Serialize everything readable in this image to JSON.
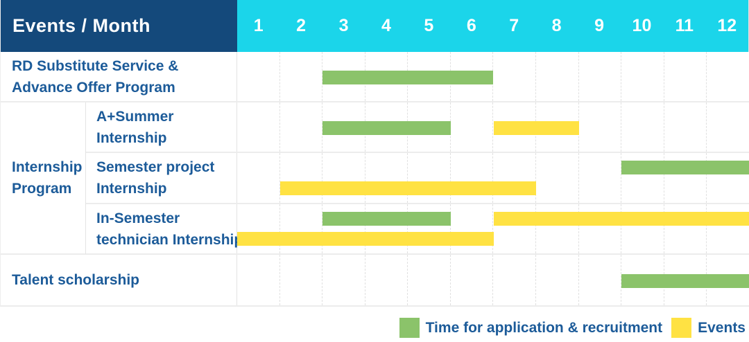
{
  "header": {
    "title": "Events / Month"
  },
  "colors": {
    "header_bg": "#14497B",
    "months_bg": "#1BD5EA",
    "text_blue": "#1C5B99",
    "green": "#8BC36A",
    "yellow": "#FFE243"
  },
  "legend": [
    {
      "color_key": "green",
      "label": "Time for application & recruitment"
    },
    {
      "color_key": "yellow",
      "label": "Events"
    }
  ],
  "chart_data": {
    "type": "bar",
    "subtype": "gantt-timeline",
    "title": "Events / Month",
    "x_categories": [
      "1",
      "2",
      "3",
      "4",
      "5",
      "6",
      "7",
      "8",
      "9",
      "10",
      "11",
      "12"
    ],
    "x_axis_label": "Month",
    "x_range": [
      1,
      12
    ],
    "grid": "vertical-dashed",
    "legend_position": "bottom-right",
    "legend": {
      "green": "Time for application & recruitment",
      "yellow": "Events"
    },
    "sections": [
      {
        "type": "single",
        "label_lines": [
          "RD Substitute Service &",
          "Advance Offer Program"
        ],
        "bands": [
          {
            "pos": "center",
            "bars": [
              {
                "color": "green",
                "start_month": 3,
                "end_month": 6
              }
            ]
          }
        ]
      },
      {
        "type": "group",
        "label_lines": [
          "Internship",
          "Program"
        ],
        "rows": [
          {
            "label_lines": [
              "A+Summer",
              "Internship"
            ],
            "bands": [
              {
                "pos": "center",
                "bars": [
                  {
                    "color": "green",
                    "start_month": 3,
                    "end_month": 5
                  },
                  {
                    "color": "yellow",
                    "start_month": 7,
                    "end_month": 8
                  }
                ]
              }
            ]
          },
          {
            "label_lines": [
              "Semester project",
              "Internship"
            ],
            "bands": [
              {
                "pos": "top",
                "bars": [
                  {
                    "color": "green",
                    "start_month": 10,
                    "end_month": 12
                  }
                ]
              },
              {
                "pos": "bottom",
                "bars": [
                  {
                    "color": "yellow",
                    "start_month": 2,
                    "end_month": 7
                  }
                ]
              }
            ]
          },
          {
            "label_lines": [
              "In-Semester",
              "technician Internship"
            ],
            "bands": [
              {
                "pos": "top",
                "bars": [
                  {
                    "color": "green",
                    "start_month": 3,
                    "end_month": 5
                  },
                  {
                    "color": "yellow",
                    "start_month": 7,
                    "end_month": 12
                  }
                ]
              },
              {
                "pos": "bottom",
                "bars": [
                  {
                    "color": "yellow",
                    "start_month": 1,
                    "end_month": 6
                  }
                ]
              }
            ]
          }
        ]
      },
      {
        "type": "single",
        "label_lines": [
          "Talent scholarship"
        ],
        "bands": [
          {
            "pos": "center",
            "bars": [
              {
                "color": "green",
                "start_month": 10,
                "end_month": 12
              }
            ]
          }
        ]
      }
    ]
  }
}
